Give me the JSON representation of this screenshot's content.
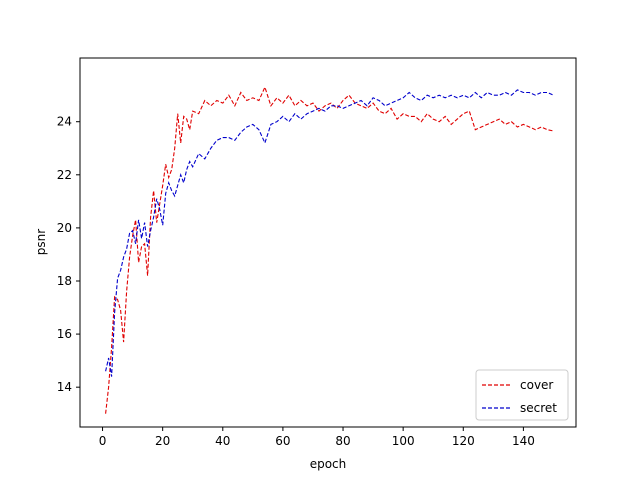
{
  "chart_data": {
    "type": "line",
    "xlabel": "epoch",
    "ylabel": "psnr",
    "xlim": [
      -7.5,
      157.5
    ],
    "ylim": [
      12.5,
      26.4
    ],
    "xticks": [
      0,
      20,
      40,
      60,
      80,
      100,
      120,
      140
    ],
    "yticks": [
      14,
      16,
      18,
      20,
      22,
      24
    ],
    "grid": false,
    "legend_position": "lower-right",
    "series": [
      {
        "name": "cover",
        "color": "#e00000",
        "dash": "dashed",
        "x": [
          1,
          2,
          3,
          4,
          5,
          6,
          7,
          8,
          9,
          10,
          11,
          12,
          13,
          14,
          15,
          16,
          17,
          18,
          19,
          20,
          21,
          22,
          23,
          24,
          25,
          26,
          27,
          28,
          29,
          30,
          32,
          34,
          36,
          38,
          40,
          42,
          44,
          46,
          48,
          50,
          52,
          54,
          56,
          58,
          60,
          62,
          64,
          66,
          68,
          70,
          72,
          74,
          76,
          78,
          80,
          82,
          84,
          86,
          88,
          90,
          92,
          94,
          96,
          98,
          100,
          102,
          104,
          106,
          108,
          110,
          112,
          114,
          116,
          118,
          120,
          122,
          124,
          126,
          128,
          130,
          132,
          134,
          136,
          138,
          140,
          142,
          144,
          146,
          148,
          150
        ],
        "values": [
          13.0,
          14.0,
          15.5,
          17.4,
          17.3,
          16.9,
          15.7,
          17.6,
          18.9,
          19.7,
          20.3,
          18.7,
          19.3,
          19.4,
          18.2,
          20.4,
          21.4,
          20.2,
          20.9,
          21.6,
          22.4,
          21.9,
          22.2,
          23.0,
          24.3,
          23.2,
          24.2,
          24.1,
          23.7,
          24.4,
          24.3,
          24.8,
          24.6,
          24.8,
          24.7,
          25.0,
          24.6,
          25.1,
          24.8,
          24.9,
          24.8,
          25.3,
          24.6,
          24.9,
          24.7,
          25.0,
          24.6,
          24.8,
          24.6,
          24.7,
          24.4,
          24.6,
          24.7,
          24.5,
          24.8,
          25.0,
          24.7,
          24.6,
          24.5,
          24.7,
          24.4,
          24.3,
          24.5,
          24.1,
          24.3,
          24.2,
          24.2,
          24.0,
          24.3,
          24.1,
          24.0,
          24.2,
          23.9,
          24.1,
          24.3,
          24.4,
          23.7,
          23.8,
          23.9,
          24.0,
          24.1,
          23.9,
          24.0,
          23.8,
          23.9,
          23.8,
          23.7,
          23.8,
          23.7,
          23.65
        ]
      },
      {
        "name": "secret",
        "color": "#0000cc",
        "dash": "dashed",
        "x": [
          1,
          2,
          3,
          4,
          5,
          6,
          7,
          8,
          9,
          10,
          11,
          12,
          13,
          14,
          15,
          16,
          17,
          18,
          19,
          20,
          21,
          22,
          23,
          24,
          25,
          26,
          27,
          28,
          29,
          30,
          32,
          34,
          36,
          38,
          40,
          42,
          44,
          46,
          48,
          50,
          52,
          54,
          56,
          58,
          60,
          62,
          64,
          66,
          68,
          70,
          72,
          74,
          76,
          78,
          80,
          82,
          84,
          86,
          88,
          90,
          92,
          94,
          96,
          98,
          100,
          102,
          104,
          106,
          108,
          110,
          112,
          114,
          116,
          118,
          120,
          122,
          124,
          126,
          128,
          130,
          132,
          134,
          136,
          138,
          140,
          142,
          144,
          146,
          148,
          150
        ],
        "values": [
          14.6,
          15.1,
          14.4,
          16.8,
          18.1,
          18.4,
          18.9,
          19.2,
          19.8,
          19.9,
          19.4,
          20.3,
          19.6,
          20.2,
          19.3,
          19.9,
          20.4,
          21.1,
          20.7,
          20.1,
          21.3,
          21.7,
          21.4,
          21.2,
          21.6,
          22.0,
          21.7,
          22.2,
          22.5,
          22.3,
          22.8,
          22.6,
          23.0,
          23.3,
          23.4,
          23.4,
          23.3,
          23.6,
          23.8,
          23.9,
          23.7,
          23.2,
          23.9,
          24.0,
          24.2,
          24.0,
          24.3,
          24.1,
          24.3,
          24.4,
          24.5,
          24.4,
          24.6,
          24.6,
          24.5,
          24.6,
          24.7,
          24.8,
          24.6,
          24.9,
          24.8,
          24.6,
          24.7,
          24.8,
          24.9,
          25.1,
          24.9,
          24.8,
          25.0,
          24.9,
          25.0,
          24.9,
          25.0,
          24.9,
          25.0,
          24.9,
          25.1,
          24.9,
          25.1,
          25.0,
          25.0,
          25.1,
          25.0,
          25.2,
          25.1,
          25.1,
          25.0,
          25.1,
          25.1,
          25.0
        ]
      }
    ]
  }
}
